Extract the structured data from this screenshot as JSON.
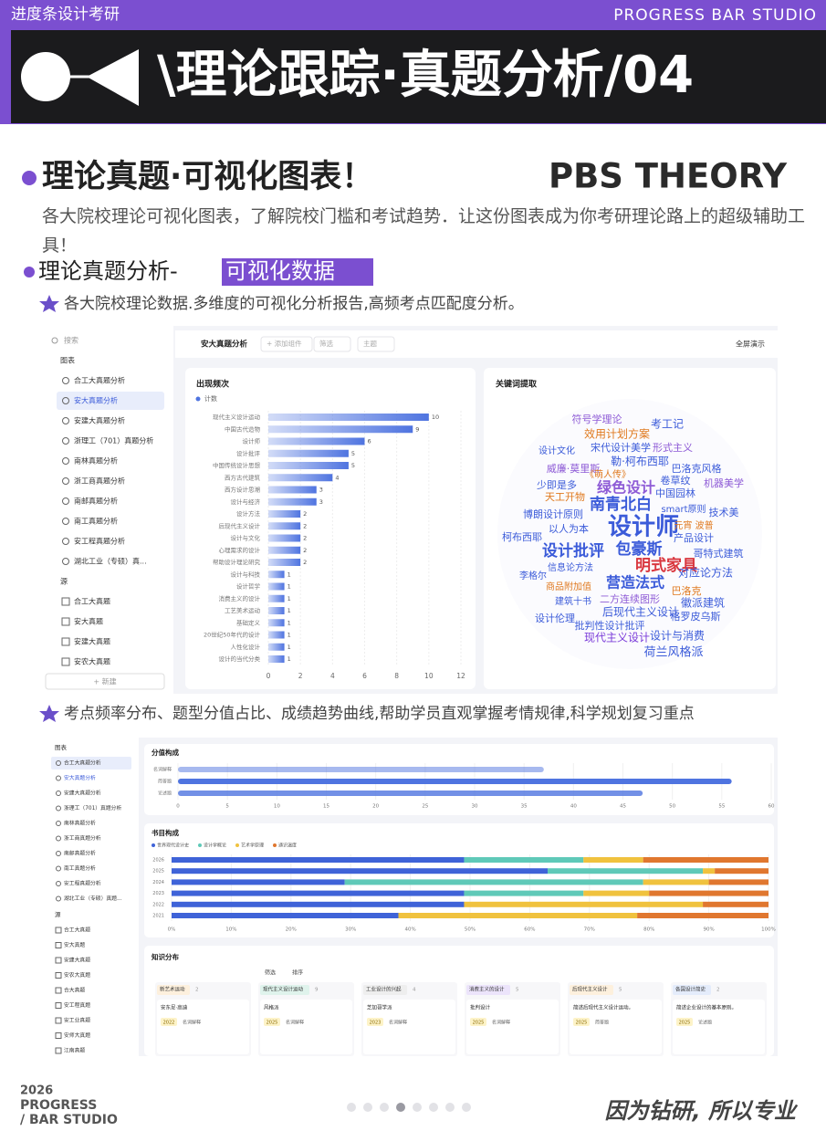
{
  "header": {
    "tag": "进度条设计考研",
    "studio": "PROGRESS BAR STUDIO",
    "title": "\\理论跟踪·真题分析/04"
  },
  "intro": {
    "heading": "理论真题·可视化图表！",
    "brand": "PBS THEORY",
    "text": "各大院校理论可视化图表，了解院校门槛和考试趋势．让这份图表成为你考研理论路上的超级辅助工具！",
    "subheading": "理论真题分析-",
    "highlight": "可视化数据",
    "note": "各大院校理论数据.多维度的可视化分析报告,高频考点匹配度分析。"
  },
  "screen1": {
    "search": "搜索",
    "group_charts": "图表",
    "chart_items": [
      "合工大真题分析",
      "安大真题分析",
      "安建大真题分析",
      "浙理工（701）真题分析",
      "南林真题分析",
      "浙工商真题分析",
      "南邮真题分析",
      "南工真题分析",
      "安工程真题分析",
      "湖北工业（专硕）真..."
    ],
    "group_sources": "源",
    "source_items": [
      "合工大真题",
      "安大真题",
      "安建大真题",
      "安农大真题"
    ],
    "new": "+ 新建",
    "tab": "安大真题分析",
    "toolbar": [
      "+ 添加组件",
      "筛选",
      "主题"
    ],
    "present": "全屏演示",
    "frequency_chart": {
      "type": "bar",
      "title": "出现频次",
      "legend": "计数",
      "color": "#4f74e0",
      "categories": [
        "现代主义设计运动",
        "中国古代造物",
        "设计师",
        "设计批评",
        "中国传统设计思想",
        "西方古代建筑",
        "西方设计思潮",
        "设计与经济",
        "设计方法",
        "后现代主义设计",
        "设计与文化",
        "心理需求的设计",
        "帮助设计理论研究",
        "设计与科技",
        "设计哲学",
        "消费主义的设计",
        "工艺美术运动",
        "基础定义",
        "20世纪50年代的设计",
        "人性化设计",
        "设计的当代分类"
      ],
      "values": [
        10,
        9,
        6,
        5,
        5,
        4,
        3,
        3,
        2,
        2,
        2,
        2,
        2,
        1,
        1,
        1,
        1,
        1,
        1,
        1,
        1
      ],
      "xlim": [
        0,
        12
      ],
      "xticks": [
        0,
        2,
        4,
        6,
        8,
        10,
        12
      ],
      "grid": true
    },
    "keywords": {
      "title": "关键词提取",
      "words": [
        "设计师",
        "南青北白",
        "绿色设计",
        "明式家具",
        "设计批评",
        "包豪斯",
        "营造法式",
        "后现代主义设计",
        "现代主义设计",
        "荷兰风格派",
        "格罗皮乌斯",
        "对应论方法",
        "徽派建筑",
        "批判性设计批评",
        "设计与消费",
        "符号学理论",
        "考工记",
        "效用计划方案",
        "宋代设计美学",
        "形式主义",
        "勒·柯布西耶",
        "巴洛克风格",
        "威廉·莫里斯",
        "《萌人传》",
        "卷草纹",
        "机器美学",
        "少即是多",
        "中国园林",
        "天工开物",
        "技术美",
        "smart原则",
        "博朗设计原则",
        "以人为本",
        "元宵 波普",
        "产品设计",
        "柯布西耶",
        "哥特式建筑",
        "信息论方法",
        "李格尔",
        "商品附加值",
        "二方连续图形",
        "建筑十书",
        "巴洛克",
        "设计伦理",
        "设计文化"
      ]
    }
  },
  "note2": "考点频率分布、题型分值占比、成绩趋势曲线,帮助学员直观掌握考情规律,科学规划复习重点",
  "screen2": {
    "group_charts": "图表",
    "chart_items": [
      "合工大真题分析",
      "安大真题分析",
      "安建大真题分析",
      "浙理工（701）真题分析",
      "南林真题分析",
      "浙工商真题分析",
      "南邮真题分析",
      "南工真题分析",
      "安工程真题分析",
      "湖北工业（专硕）真题..."
    ],
    "group_sources": "源",
    "source_items": [
      "合工大真题",
      "安大真题",
      "安建大真题",
      "安农大真题",
      "合大真题",
      "安工程真题",
      "安工业真题",
      "安师大真题",
      "江南真题"
    ],
    "score_chart": {
      "type": "bar",
      "title": "分值构成",
      "color": "#4f74e0",
      "categories": [
        "名词解释",
        "简答题",
        "论述题"
      ],
      "values": [
        37,
        56,
        47
      ],
      "xlim": [
        0,
        60
      ],
      "xticks": [
        0,
        5,
        10,
        15,
        20,
        25,
        30,
        35,
        40,
        45,
        50,
        55,
        60
      ]
    },
    "book_chart": {
      "type": "stacked_bar",
      "title": "书目构成",
      "categories": [
        "2026",
        "2025",
        "2024",
        "2023",
        "2022",
        "2021"
      ],
      "series": [
        {
          "name": "世界现代设计史",
          "color": "#3f63d8",
          "values": [
            49,
            63,
            29,
            49,
            49,
            38
          ]
        },
        {
          "name": "设计学概论",
          "color": "#5fc9b8",
          "values": [
            20,
            26,
            50,
            20,
            0,
            0
          ]
        },
        {
          "name": "艺术学原理",
          "color": "#f0c23e",
          "values": [
            10,
            2,
            11,
            11,
            40,
            40
          ]
        },
        {
          "name": "通识温度",
          "color": "#e0772f",
          "values": [
            21,
            9,
            10,
            20,
            11,
            22
          ]
        }
      ],
      "xlim": [
        0,
        100
      ],
      "xticks": [
        {
          "value": 0,
          "label": "0%"
        },
        {
          "value": 10,
          "label": "10%"
        },
        {
          "value": 20,
          "label": "20%"
        },
        {
          "value": 30,
          "label": "30%"
        },
        {
          "value": 40,
          "label": "40%"
        },
        {
          "value": 50,
          "label": "50%"
        },
        {
          "value": 60,
          "label": "60%"
        },
        {
          "value": 70,
          "label": "70%"
        },
        {
          "value": 80,
          "label": "80%"
        },
        {
          "value": 90,
          "label": "90%"
        },
        {
          "value": 100,
          "label": "100%"
        }
      ]
    },
    "knowledge": {
      "title": "知识分布",
      "toolbar": [
        "筛选",
        "排序"
      ],
      "columns": [
        {
          "name": "新艺术运动",
          "count": "2",
          "card": "安东尼·高迪",
          "year": "2022",
          "kind": "名词解释"
        },
        {
          "name": "现代主义设计运动",
          "count": "9",
          "card": "风格派",
          "year": "2025",
          "kind": "名词解释"
        },
        {
          "name": "工业设计的兴起",
          "count": "4",
          "card": "芝加哥学派",
          "year": "2023",
          "kind": "名词解释"
        },
        {
          "name": "消费主义的设计",
          "count": "5",
          "card": "批判设计",
          "year": "2025",
          "kind": "名词解释"
        },
        {
          "name": "后现代主义设计",
          "count": "5",
          "card": "简述后现代主义设计运动。",
          "year": "2025",
          "kind": "简答题"
        },
        {
          "name": "各国设计简史",
          "count": "2",
          "card": "简述企业设计的基本原则。",
          "year": "2025",
          "kind": "论述题"
        }
      ]
    }
  },
  "footer": {
    "year": "2026",
    "line1": "PROGRESS",
    "line2": "/  BAR STUDIO",
    "slogan": "因为钻研, 所以专业"
  }
}
